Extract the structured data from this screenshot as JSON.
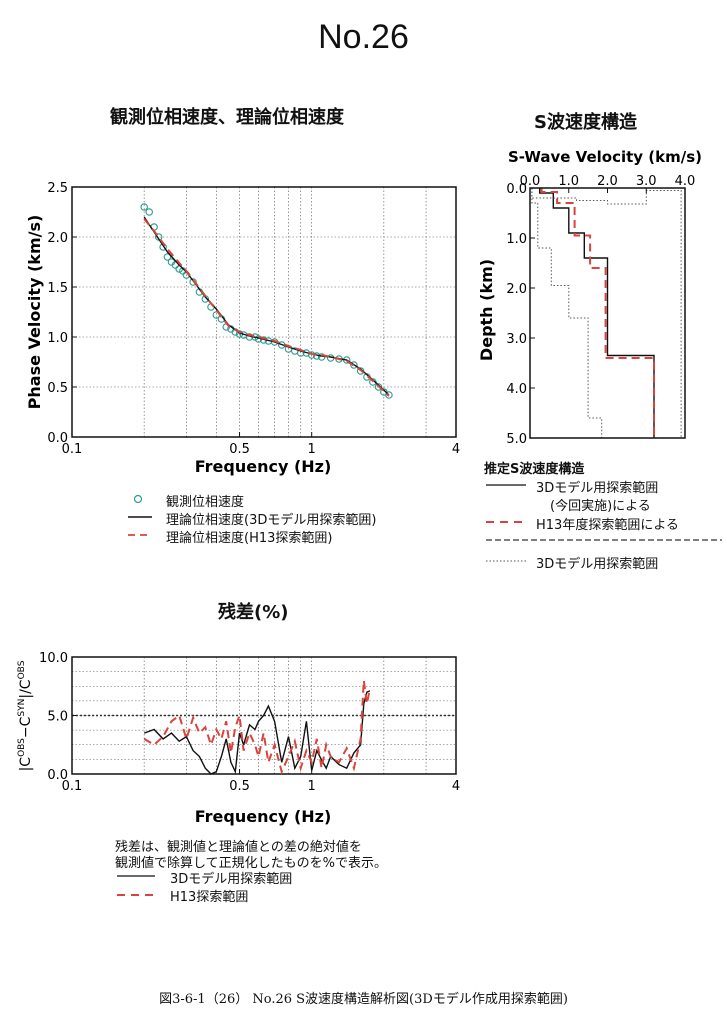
{
  "title": "No.26",
  "caption": "図3-6-1（26） No.26 S波速度構造解析図(3Dモデル作成用探索範囲)",
  "colors": {
    "observed": "#2a9d8f",
    "model3d": "#111111",
    "h13": "#d9443c",
    "search": "#555555"
  },
  "charts": [
    {
      "id": "phase",
      "section_title": "観測位相速度、理論位相速度",
      "type": "line",
      "xlabel": "Frequency (Hz)",
      "ylabel": "Phase Velocity (km/s)",
      "xscale": "log",
      "xlim": [
        0.1,
        4
      ],
      "ylim": [
        0,
        2.5
      ],
      "xticks": [
        "0.1",
        "0.5",
        "1",
        "4"
      ],
      "yticks": [
        "0.0",
        "0.5",
        "1.0",
        "1.5",
        "2.0",
        "2.5"
      ],
      "legend": [
        "観測位相速度",
        "理論位相速度(3Dモデル用探索範囲)",
        "理論位相速度(H13探索範囲)"
      ],
      "series": [
        {
          "name": "観測位相速度",
          "style": "circle",
          "x": [
            0.2,
            0.21,
            0.22,
            0.23,
            0.24,
            0.25,
            0.26,
            0.27,
            0.28,
            0.29,
            0.3,
            0.32,
            0.34,
            0.36,
            0.38,
            0.4,
            0.42,
            0.44,
            0.46,
            0.48,
            0.5,
            0.52,
            0.55,
            0.58,
            0.6,
            0.63,
            0.66,
            0.7,
            0.75,
            0.8,
            0.85,
            0.9,
            0.95,
            1,
            1.05,
            1.1,
            1.2,
            1.3,
            1.4,
            1.5,
            1.6,
            1.7,
            1.8,
            1.9,
            2,
            2.1
          ],
          "y": [
            2.3,
            2.25,
            2.1,
            2.0,
            1.9,
            1.8,
            1.75,
            1.72,
            1.68,
            1.66,
            1.62,
            1.55,
            1.45,
            1.38,
            1.3,
            1.22,
            1.18,
            1.1,
            1.08,
            1.05,
            1.03,
            1.02,
            1.0,
            1.0,
            0.98,
            0.97,
            0.96,
            0.95,
            0.92,
            0.88,
            0.86,
            0.84,
            0.84,
            0.82,
            0.81,
            0.8,
            0.79,
            0.78,
            0.77,
            0.72,
            0.66,
            0.6,
            0.55,
            0.5,
            0.45,
            0.42
          ]
        },
        {
          "name": "理論位相速度(3Dモデル用探索範囲)",
          "style": "solid",
          "x": [
            0.2,
            0.22,
            0.25,
            0.28,
            0.3,
            0.33,
            0.36,
            0.4,
            0.45,
            0.5,
            0.55,
            0.6,
            0.7,
            0.8,
            0.9,
            1,
            1.1,
            1.2,
            1.4,
            1.6,
            1.8,
            2,
            2.1
          ],
          "y": [
            2.2,
            2.05,
            1.85,
            1.72,
            1.65,
            1.52,
            1.4,
            1.28,
            1.12,
            1.04,
            1.01,
            0.99,
            0.95,
            0.9,
            0.86,
            0.83,
            0.81,
            0.8,
            0.77,
            0.68,
            0.57,
            0.47,
            0.42
          ]
        },
        {
          "name": "理論位相速度(H13探索範囲)",
          "style": "dashed",
          "x": [
            0.2,
            0.22,
            0.25,
            0.28,
            0.3,
            0.33,
            0.36,
            0.4,
            0.45,
            0.5,
            0.55,
            0.6,
            0.7,
            0.8,
            0.9,
            1,
            1.1,
            1.2,
            1.4,
            1.6,
            1.8,
            2,
            2.1
          ],
          "y": [
            2.18,
            2.06,
            1.88,
            1.74,
            1.66,
            1.53,
            1.41,
            1.27,
            1.11,
            1.05,
            1.02,
            1.0,
            0.96,
            0.91,
            0.87,
            0.83,
            0.82,
            0.8,
            0.76,
            0.67,
            0.56,
            0.46,
            0.41
          ]
        }
      ]
    },
    {
      "id": "svel",
      "section_title": "S波速度構造",
      "type": "line",
      "plot_title": "S-Wave Velocity (km/s)",
      "ylabel": "Depth (km)",
      "xlim": [
        0,
        4
      ],
      "ylim": [
        5,
        0
      ],
      "xticks": [
        "0.0",
        "1.0",
        "2.0",
        "3.0",
        "4.0"
      ],
      "yticks": [
        "0.0",
        "1.0",
        "2.0",
        "3.0",
        "4.0",
        "5.0"
      ],
      "legend_title": "推定S波速度構造",
      "legend": [
        "3Dモデル用探索範囲",
        "(今回実施)による",
        "H13年度探索範囲による",
        "3Dモデル用探索範囲"
      ],
      "series": [
        {
          "name": "3Dモデル用探索範囲",
          "style": "solid",
          "x": [
            0.25,
            0.25,
            0.6,
            0.6,
            1.0,
            1.0,
            1.4,
            1.4,
            2.0,
            2.0,
            3.2,
            3.2
          ],
          "y": [
            0,
            0.1,
            0.1,
            0.4,
            0.4,
            0.9,
            0.9,
            1.4,
            1.4,
            3.35,
            3.35,
            5
          ]
        },
        {
          "name": "H13年度探索範囲による",
          "style": "dashed",
          "x": [
            0.3,
            0.3,
            0.7,
            0.7,
            1.15,
            1.15,
            1.55,
            1.55,
            1.95,
            1.95,
            3.2,
            3.2
          ],
          "y": [
            0,
            0.08,
            0.08,
            0.3,
            0.3,
            0.95,
            0.95,
            1.6,
            1.6,
            3.4,
            3.4,
            5
          ]
        },
        {
          "name": "search-upper",
          "style": "dotted",
          "x": [
            0.05,
            0.05,
            1.2,
            1.2,
            2.0,
            2.0,
            3.0,
            3.0,
            3.9,
            3.9
          ],
          "y": [
            0,
            0.2,
            0.2,
            0.25,
            0.25,
            0.32,
            0.32,
            0.05,
            0.05,
            5
          ]
        },
        {
          "name": "search-lower",
          "style": "dotted",
          "x": [
            0.05,
            0.05,
            0.2,
            0.2,
            0.55,
            0.55,
            1.0,
            1.0,
            1.5,
            1.5,
            1.85,
            1.85
          ],
          "y": [
            0,
            0.3,
            0.3,
            1.2,
            1.2,
            1.95,
            1.95,
            2.6,
            2.6,
            4.6,
            4.6,
            5
          ]
        }
      ]
    },
    {
      "id": "resid",
      "section_title": "残差(%)",
      "type": "line",
      "xlabel": "Frequency (Hz)",
      "ylabel": "|C^OBS−C^SYN|/C^OBS",
      "ylabel_parts": [
        "|C",
        "OBS",
        "−C",
        "SYN",
        "|/C",
        "OBS"
      ],
      "xscale": "log",
      "xlim": [
        0.1,
        4
      ],
      "ylim": [
        0,
        10
      ],
      "xticks": [
        "0.1",
        "0.5",
        "1",
        "4"
      ],
      "yticks": [
        "0.0",
        "5.0",
        "10.0"
      ],
      "notes": [
        "残差は、観測値と理論値との差の絶対値を",
        "観測値で除算して正規化したものを%で表示。"
      ],
      "legend": [
        "3Dモデル用探索範囲",
        "H13探索範囲"
      ],
      "series": [
        {
          "name": "3Dモデル用探索範囲",
          "style": "solid",
          "x": [
            0.2,
            0.22,
            0.24,
            0.26,
            0.28,
            0.3,
            0.32,
            0.34,
            0.36,
            0.38,
            0.4,
            0.42,
            0.44,
            0.46,
            0.48,
            0.5,
            0.52,
            0.55,
            0.58,
            0.6,
            0.63,
            0.66,
            0.7,
            0.75,
            0.8,
            0.85,
            0.9,
            0.95,
            1.0,
            1.05,
            1.1,
            1.15,
            1.2,
            1.3,
            1.4,
            1.5,
            1.6,
            1.65,
            1.7,
            1.75
          ],
          "y": [
            3.5,
            3.8,
            3.0,
            3.5,
            2.8,
            3.2,
            2.0,
            1.5,
            0.5,
            0.0,
            0.2,
            1.5,
            3.0,
            1.0,
            0.2,
            3.5,
            2.5,
            4.2,
            3.8,
            4.5,
            5.0,
            5.8,
            4.5,
            1.0,
            3.2,
            0.5,
            1.5,
            4.5,
            0.3,
            2.0,
            1.2,
            0.5,
            1.5,
            0.8,
            0.5,
            1.8,
            2.5,
            6.0,
            7.0,
            7.1
          ]
        },
        {
          "name": "H13探索範囲",
          "style": "dashed",
          "x": [
            0.2,
            0.22,
            0.24,
            0.26,
            0.28,
            0.3,
            0.32,
            0.34,
            0.36,
            0.38,
            0.4,
            0.42,
            0.44,
            0.46,
            0.48,
            0.5,
            0.52,
            0.55,
            0.58,
            0.6,
            0.63,
            0.66,
            0.7,
            0.75,
            0.8,
            0.85,
            0.9,
            0.95,
            1.0,
            1.05,
            1.1,
            1.15,
            1.2,
            1.3,
            1.4,
            1.5,
            1.6,
            1.65,
            1.7,
            1.75
          ],
          "y": [
            3.0,
            2.5,
            3.2,
            4.5,
            5.0,
            3.0,
            4.8,
            3.5,
            4.0,
            2.5,
            3.8,
            3.0,
            4.5,
            1.8,
            4.0,
            5.0,
            2.0,
            3.5,
            2.5,
            1.5,
            3.5,
            1.0,
            2.5,
            0.2,
            1.5,
            2.8,
            0.5,
            2.0,
            1.0,
            3.0,
            0.5,
            2.5,
            1.5,
            1.0,
            2.2,
            0.5,
            3.0,
            8.0,
            6.0,
            7.3
          ]
        }
      ]
    }
  ]
}
